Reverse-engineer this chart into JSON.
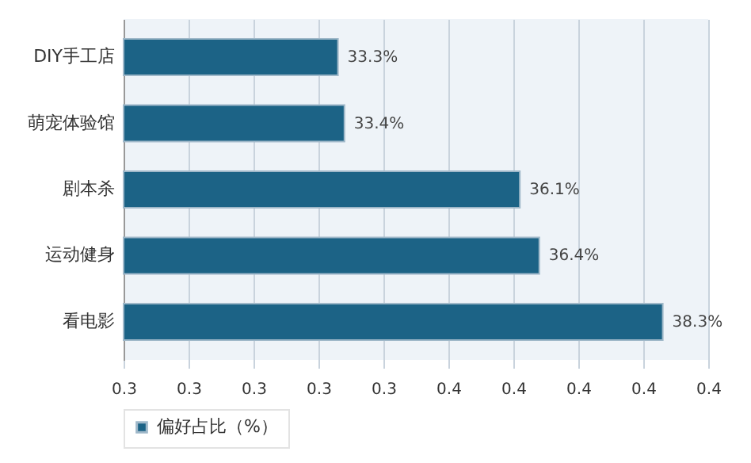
{
  "chart_data": {
    "type": "bar",
    "orientation": "horizontal",
    "categories": [
      "DIY手工店",
      "萌宠体验馆",
      "剧本杀",
      "运动健身",
      "看电影"
    ],
    "series": [
      {
        "name": "偏好占比（%）",
        "color": "#1c6386",
        "values": [
          0.333,
          0.334,
          0.361,
          0.364,
          0.383
        ],
        "value_labels": [
          "33.3%",
          "33.4%",
          "36.1%",
          "36.4%",
          "38.3%"
        ]
      }
    ],
    "xlim": [
      0.3,
      0.39
    ],
    "xticks": [
      {
        "value": 0.3,
        "label": "0.3"
      },
      {
        "value": 0.31,
        "label": "0.3"
      },
      {
        "value": 0.32,
        "label": "0.3"
      },
      {
        "value": 0.33,
        "label": "0.3"
      },
      {
        "value": 0.34,
        "label": "0.3"
      },
      {
        "value": 0.35,
        "label": "0.4"
      },
      {
        "value": 0.36,
        "label": "0.4"
      },
      {
        "value": 0.37,
        "label": "0.4"
      },
      {
        "value": 0.38,
        "label": "0.4"
      },
      {
        "value": 0.39,
        "label": "0.4"
      }
    ],
    "grid": "x",
    "legend": "bottom"
  }
}
